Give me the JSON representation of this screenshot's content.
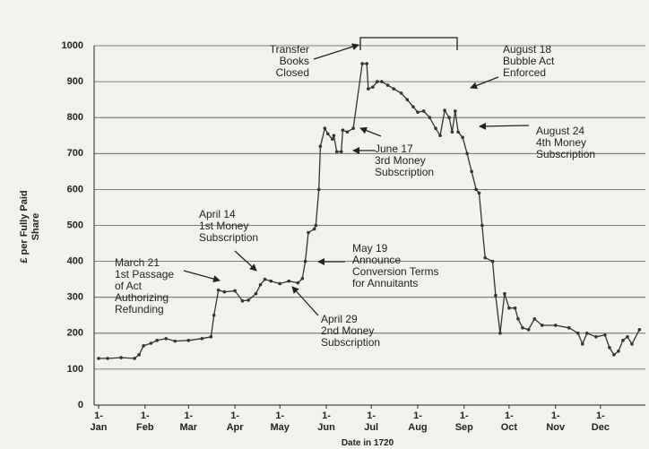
{
  "chart_data": {
    "type": "line",
    "y_label": "£ per Fully Paid\nShare",
    "x_label": "Date in 1720",
    "xlim": [
      -3,
      365
    ],
    "xticks": [
      {
        "value": 0,
        "label": "1-\nJan"
      },
      {
        "value": 31,
        "label": "1-\nFeb"
      },
      {
        "value": 60,
        "label": "1-\nMar"
      },
      {
        "value": 91,
        "label": "1-\nApr"
      },
      {
        "value": 121,
        "label": "1-\nMay"
      },
      {
        "value": 152,
        "label": "1-\nJun"
      },
      {
        "value": 182,
        "label": "1-\nJul"
      },
      {
        "value": 213,
        "label": "1-\nAug"
      },
      {
        "value": 244,
        "label": "1-\nSep"
      },
      {
        "value": 274,
        "label": "1-\nOct"
      },
      {
        "value": 305,
        "label": "1-\nNov"
      },
      {
        "value": 335,
        "label": "1-\nDec"
      }
    ],
    "ylim": [
      0,
      1000
    ],
    "yticks": [
      0,
      100,
      200,
      300,
      400,
      500,
      600,
      700,
      800,
      900,
      1000
    ],
    "grid": true,
    "series": [
      {
        "color": "#333333",
        "x": [
          0,
          6,
          15,
          24,
          27,
          30,
          35,
          39,
          45,
          51,
          60,
          69,
          75,
          77,
          80,
          84,
          91,
          96,
          100,
          105,
          108,
          111,
          115,
          121,
          127,
          133,
          136,
          138,
          140,
          144,
          145,
          147,
          148,
          151,
          153,
          156,
          157,
          159,
          162,
          163,
          166,
          170,
          176,
          179,
          180,
          183,
          186,
          189,
          193,
          197,
          202,
          206,
          210,
          213,
          217,
          221,
          225,
          228,
          231,
          234,
          236,
          238,
          240,
          243,
          246,
          249,
          252,
          254,
          256,
          258,
          263,
          265,
          268,
          271,
          274,
          278,
          280,
          283,
          287,
          291,
          296,
          305,
          314,
          320,
          323,
          326,
          332,
          338,
          341,
          344,
          347,
          350,
          353,
          356,
          361
        ],
        "values": [
          130,
          130,
          132,
          130,
          140,
          165,
          172,
          180,
          185,
          178,
          180,
          185,
          190,
          250,
          320,
          315,
          318,
          290,
          292,
          310,
          335,
          350,
          345,
          338,
          345,
          340,
          352,
          400,
          480,
          490,
          500,
          600,
          720,
          770,
          755,
          740,
          750,
          705,
          705,
          765,
          760,
          770,
          950,
          950,
          880,
          885,
          900,
          900,
          890,
          880,
          868,
          850,
          830,
          815,
          818,
          800,
          770,
          750,
          820,
          800,
          760,
          818,
          760,
          745,
          700,
          650,
          600,
          590,
          500,
          410,
          400,
          305,
          200,
          310,
          270,
          270,
          240,
          215,
          210,
          240,
          222,
          222,
          215,
          200,
          170,
          200,
          190,
          195,
          160,
          140,
          150,
          180,
          190,
          170,
          210
        ]
      }
    ],
    "annotations": [
      {
        "text": "Transfer\nBooks\nClosed"
      },
      {
        "text": "August 18\nBubble Act\nEnforced"
      },
      {
        "text": "August 24\n4th Money\nSubscription"
      },
      {
        "text": "June 17\n3rd Money\nSubscription"
      },
      {
        "text": "April 14\n1st Money\nSubscription"
      },
      {
        "text": "March 21\n1st Passage\nof Act\nAuthorizing\nRefunding"
      },
      {
        "text": "May 19\nAnnounce\nConversion Terms\nfor Annuitants"
      },
      {
        "text": "April 29\n2nd Money\nSubscription"
      }
    ]
  }
}
